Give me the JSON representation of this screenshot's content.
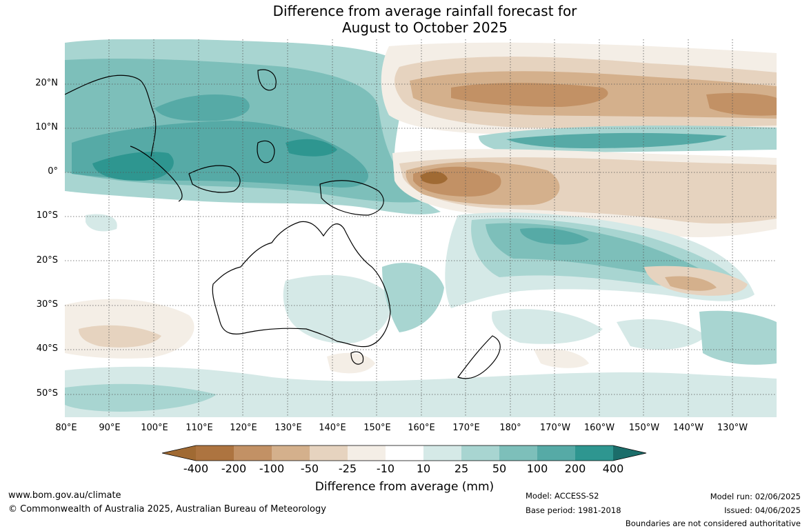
{
  "title": {
    "line1": "Difference from average rainfall forecast for",
    "line2": "August to October 2025"
  },
  "map": {
    "lat_labels": [
      "20°N",
      "10°N",
      "0°",
      "10°S",
      "20°S",
      "30°S",
      "40°S",
      "50°S"
    ],
    "lon_labels": [
      "80°E",
      "90°E",
      "100°E",
      "110°E",
      "120°E",
      "130°E",
      "140°E",
      "150°E",
      "160°E",
      "170°E",
      "180°",
      "170°W",
      "160°W",
      "150°W",
      "140°W",
      "130°W"
    ]
  },
  "colorbar": {
    "ticks": [
      "-400",
      "-200",
      "-100",
      "-50",
      "-25",
      "-10",
      "10",
      "25",
      "50",
      "100",
      "200",
      "400"
    ],
    "colors": [
      "#a06a33",
      "#ad7440",
      "#c29165",
      "#d4b08c",
      "#e6d3bf",
      "#f4eee6",
      "#ffffff",
      "#d5e9e7",
      "#a8d5d1",
      "#7dbfba",
      "#56aaa6",
      "#2e9690",
      "#1b6d6a"
    ],
    "label": "Difference from average (mm)"
  },
  "footer": {
    "website": "www.bom.gov.au/climate",
    "copyright": "© Commonwealth of Australia 2025, Australian Bureau of Meteorology",
    "model": "Model: ACCESS-S2",
    "base_period": "Base period: 1981-2018",
    "model_run": "Model run: 02/06/2025",
    "issued": "Issued: 04/06/2025",
    "disclaimer": "Boundaries are not considered authoritative"
  }
}
